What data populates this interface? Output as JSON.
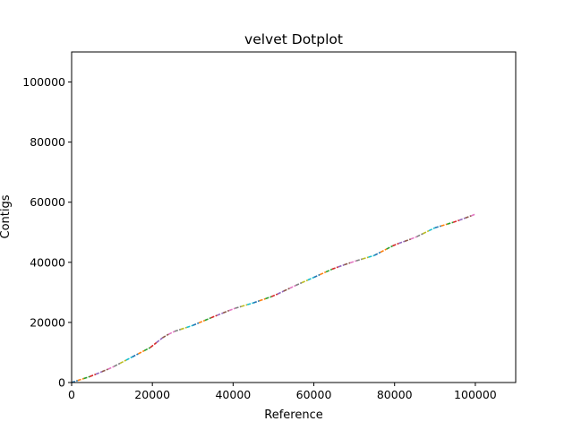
{
  "chart_data": {
    "type": "line",
    "title": "velvet Dotplot",
    "xlabel": "Reference",
    "ylabel": "Contigs",
    "xlim": [
      0,
      110000
    ],
    "ylim": [
      0,
      110000
    ],
    "xticks": [
      0,
      20000,
      40000,
      60000,
      80000,
      100000
    ],
    "yticks": [
      0,
      20000,
      40000,
      60000,
      80000,
      100000
    ],
    "xtick_labels": [
      "0",
      "20000",
      "40000",
      "60000",
      "80000",
      "100000"
    ],
    "ytick_labels": [
      "0",
      "20000",
      "40000",
      "60000",
      "80000",
      "100000"
    ],
    "grid": false,
    "legend": "none",
    "segment_colors": [
      "#1f77b4",
      "#ff7f0e",
      "#2ca02c",
      "#d62728",
      "#9467bd",
      "#8c564b",
      "#e377c2",
      "#7f7f7f",
      "#bcbd22",
      "#17becf"
    ],
    "x": [
      0,
      5000,
      10000,
      15000,
      20000,
      22000,
      25000,
      30000,
      35000,
      40000,
      45000,
      50000,
      55000,
      60000,
      65000,
      70000,
      75000,
      80000,
      85000,
      90000,
      95000,
      100000
    ],
    "y": [
      0,
      2200,
      5000,
      8500,
      12000,
      14500,
      16800,
      19000,
      21800,
      24500,
      26500,
      28800,
      32000,
      35000,
      38000,
      40300,
      42300,
      45800,
      48200,
      51500,
      53500,
      56000
    ]
  }
}
